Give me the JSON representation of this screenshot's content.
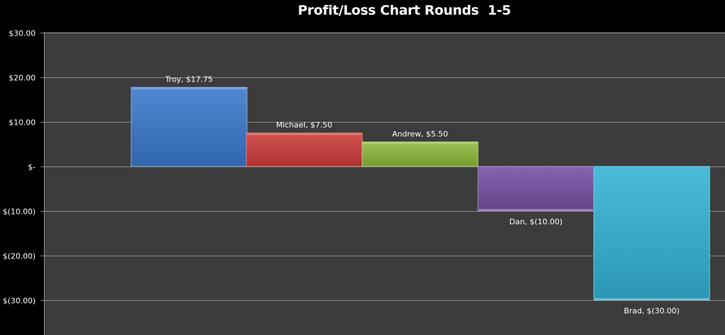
{
  "chart_data": {
    "type": "bar",
    "title": "Profit/Loss Chart Rounds  1-5",
    "categories": [
      "Troy",
      "Michael",
      "Andrew",
      "Dan",
      "Brad"
    ],
    "values": [
      17.75,
      7.5,
      5.5,
      -10,
      -30
    ],
    "data_labels": [
      "Troy,  $17.75",
      "Michael,  $7.50",
      "Andrew,  $5.50",
      "Dan,  $(10.00)",
      "Brad,  $(30.00)"
    ],
    "colors": [
      "#3a78cc",
      "#cc3b38",
      "#8cb83a",
      "#7450a4",
      "#33b2d4"
    ],
    "yticks": [
      30,
      20,
      10,
      0,
      -10,
      -20,
      -30
    ],
    "ytick_labels": [
      "$30.00",
      "$20.00",
      "$10.00",
      "$-",
      "$(10.00)",
      "$(20.00)",
      "$(30.00)"
    ],
    "ylim": [
      -37.5,
      30
    ],
    "grid": true,
    "legend": "none",
    "plot_background": "#3c3c3c",
    "page_background": "#000000"
  }
}
